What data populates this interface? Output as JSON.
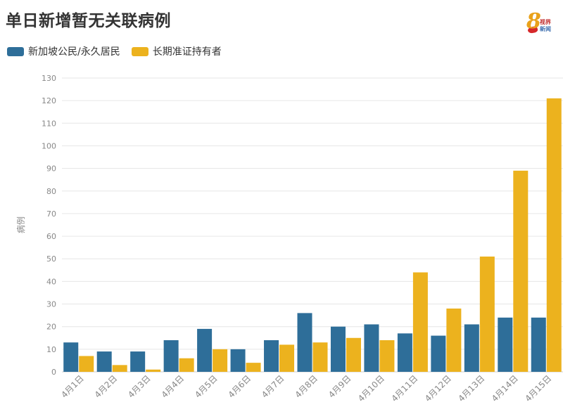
{
  "chart_data": {
    "type": "bar",
    "title": "单日新增暂无关联病例",
    "ylabel": "病例",
    "xlabel": "",
    "ylim": [
      0,
      130
    ],
    "yticks": [
      0,
      10,
      20,
      30,
      40,
      50,
      60,
      70,
      80,
      90,
      100,
      110,
      120,
      130
    ],
    "grid": true,
    "legend_position": "top-left",
    "categories": [
      "4月1日",
      "4月2日",
      "4月3日",
      "4月4日",
      "4月5日",
      "4月6日",
      "4月7日",
      "4月8日",
      "4月9日",
      "4月10日",
      "4月11日",
      "4月12日",
      "4月13日",
      "4月14日",
      "4月15日"
    ],
    "series": [
      {
        "name": "新加坡公民/永久居民",
        "color": "#2e6e99",
        "values": [
          13,
          9,
          9,
          14,
          19,
          10,
          14,
          26,
          20,
          21,
          17,
          16,
          21,
          24,
          24
        ]
      },
      {
        "name": "长期准证持有者",
        "color": "#ecb21e",
        "values": [
          7,
          3,
          1,
          6,
          10,
          4,
          12,
          13,
          15,
          14,
          44,
          28,
          51,
          89,
          121
        ]
      }
    ]
  },
  "logo": {
    "brand": "8",
    "line1": "视界",
    "line2": "新闻"
  }
}
